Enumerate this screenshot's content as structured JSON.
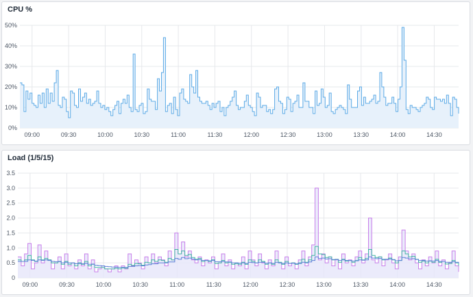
{
  "panels": {
    "cpu_title": "CPU %",
    "load_title": "Load (1/5/15)"
  },
  "colors": {
    "cpu_line": "#5aa9e6",
    "cpu_fill": "#e7f1fb",
    "load_1": "#c77dea",
    "load_5": "#3fb3a3",
    "load_15": "#5b7fd6",
    "load_fill": "#e6e6fa",
    "grid": "#e6e8eb"
  },
  "chart_data": [
    {
      "type": "area",
      "title": "CPU %",
      "ylim": [
        0,
        50
      ],
      "yticks": [
        "0%",
        "10%",
        "20%",
        "30%",
        "40%",
        "50%"
      ],
      "xticks": [
        "09:00",
        "09:30",
        "10:00",
        "10:30",
        "11:00",
        "11:30",
        "12:00",
        "12:30",
        "13:00",
        "13:30",
        "14:00",
        "14:30"
      ],
      "x_start": "08:50",
      "x_end": "14:50",
      "grid": true,
      "series": [
        {
          "values": [
            22,
            21,
            8,
            18,
            14,
            17,
            12,
            11,
            10,
            16,
            12,
            17,
            10,
            19,
            12,
            17,
            13,
            22,
            28,
            11,
            10,
            15,
            14,
            8,
            5,
            18,
            17,
            11,
            10,
            19,
            13,
            15,
            17,
            12,
            14,
            11,
            12,
            13,
            18,
            12,
            10,
            11,
            9,
            10,
            8,
            6,
            9,
            11,
            13,
            7,
            12,
            14,
            12,
            16,
            10,
            8,
            36,
            9,
            8,
            11,
            12,
            7,
            8,
            19,
            14,
            13,
            13,
            9,
            24,
            18,
            27,
            44,
            8,
            11,
            12,
            7,
            15,
            9,
            6,
            17,
            19,
            14,
            13,
            12,
            26,
            20,
            17,
            28,
            15,
            13,
            12,
            12,
            13,
            11,
            9,
            12,
            10,
            12,
            13,
            8,
            10,
            6,
            10,
            11,
            13,
            15,
            18,
            11,
            9,
            10,
            10,
            13,
            16,
            11,
            10,
            8,
            6,
            17,
            15,
            10,
            11,
            11,
            8,
            9,
            7,
            9,
            19,
            20,
            13,
            12,
            7,
            9,
            15,
            14,
            8,
            12,
            13,
            16,
            10,
            10,
            22,
            13,
            13,
            10,
            10,
            7,
            18,
            11,
            12,
            19,
            15,
            10,
            11,
            17,
            8,
            7,
            9,
            10,
            11,
            10,
            9,
            7,
            21,
            14,
            10,
            10,
            10,
            18,
            20,
            11,
            15,
            12,
            12,
            13,
            14,
            16,
            12,
            13,
            27,
            20,
            15,
            11,
            12,
            12,
            15,
            12,
            8,
            14,
            20,
            49,
            33,
            9,
            7,
            11,
            10,
            10,
            9,
            8,
            10,
            11,
            12,
            15,
            14,
            10,
            9,
            15,
            14,
            14,
            13,
            14,
            12,
            16,
            12,
            6,
            15,
            14,
            10,
            7
          ]
        }
      ]
    },
    {
      "type": "line",
      "title": "Load (1/5/15)",
      "ylim": [
        0,
        3.5
      ],
      "yticks": [
        "0",
        "0.5",
        "1.0",
        "1.5",
        "2.0",
        "2.5",
        "3.0",
        "3.5"
      ],
      "xticks": [
        "09:00",
        "09:30",
        "10:00",
        "10:30",
        "11:00",
        "11:30",
        "12:00",
        "12:30",
        "13:00",
        "13:30",
        "14:00",
        "14:30"
      ],
      "x_start": "08:50",
      "x_end": "14:50",
      "grid": true,
      "series": [
        {
          "name": "1",
          "values": [
            0.7,
            0.4,
            0.8,
            1.15,
            0.3,
            0.5,
            1.1,
            0.5,
            0.9,
            0.6,
            0.3,
            0.5,
            0.7,
            0.3,
            0.8,
            0.4,
            0.5,
            0.3,
            0.6,
            0.4,
            0.8,
            0.3,
            0.6,
            0.2,
            0.3,
            0.4,
            0.3,
            0.2,
            0.3,
            0.4,
            0.2,
            0.4,
            0.3,
            0.8,
            0.4,
            0.6,
            0.5,
            0.3,
            0.7,
            0.5,
            0.8,
            0.5,
            0.7,
            0.6,
            0.4,
            0.9,
            0.6,
            1.5,
            0.8,
            1.2,
            0.7,
            0.9,
            0.6,
            0.5,
            0.7,
            0.4,
            0.6,
            0.5,
            0.7,
            0.3,
            0.5,
            0.8,
            0.4,
            0.6,
            0.3,
            0.5,
            0.4,
            0.7,
            0.3,
            0.9,
            0.6,
            0.4,
            0.8,
            0.5,
            0.3,
            0.6,
            0.4,
            0.9,
            0.5,
            0.3,
            0.7,
            0.4,
            0.5,
            0.3,
            0.6,
            0.9,
            0.4,
            0.7,
            1.1,
            3.0,
            0.6,
            0.8,
            0.5,
            0.7,
            0.4,
            0.6,
            0.3,
            0.8,
            0.5,
            0.6,
            0.4,
            0.7,
            0.9,
            0.5,
            0.8,
            2.0,
            0.6,
            0.5,
            0.7,
            0.4,
            0.6,
            0.8,
            0.5,
            0.3,
            0.7,
            1.6,
            0.9,
            0.6,
            0.8,
            0.5,
            0.3,
            0.6,
            0.4,
            0.7,
            0.5,
            0.9,
            0.4,
            0.6,
            0.3,
            0.5,
            0.9,
            0.4,
            0.2
          ]
        },
        {
          "name": "5",
          "values": [
            0.6,
            0.55,
            0.6,
            0.75,
            0.6,
            0.55,
            0.7,
            0.6,
            0.65,
            0.6,
            0.5,
            0.5,
            0.55,
            0.45,
            0.55,
            0.45,
            0.5,
            0.4,
            0.5,
            0.45,
            0.55,
            0.4,
            0.45,
            0.35,
            0.35,
            0.35,
            0.3,
            0.3,
            0.3,
            0.32,
            0.3,
            0.33,
            0.32,
            0.45,
            0.42,
            0.48,
            0.47,
            0.42,
            0.52,
            0.5,
            0.6,
            0.55,
            0.6,
            0.58,
            0.52,
            0.65,
            0.6,
            0.95,
            0.8,
            0.9,
            0.75,
            0.78,
            0.68,
            0.62,
            0.65,
            0.55,
            0.58,
            0.55,
            0.6,
            0.48,
            0.5,
            0.58,
            0.5,
            0.52,
            0.45,
            0.48,
            0.45,
            0.52,
            0.45,
            0.6,
            0.55,
            0.5,
            0.6,
            0.55,
            0.45,
            0.5,
            0.45,
            0.6,
            0.52,
            0.45,
            0.55,
            0.48,
            0.5,
            0.45,
            0.5,
            0.62,
            0.52,
            0.6,
            0.75,
            1.05,
            0.8,
            0.78,
            0.68,
            0.7,
            0.6,
            0.62,
            0.52,
            0.62,
            0.56,
            0.58,
            0.52,
            0.58,
            0.68,
            0.6,
            0.65,
            0.95,
            0.75,
            0.68,
            0.7,
            0.6,
            0.62,
            0.66,
            0.6,
            0.5,
            0.58,
            0.9,
            0.8,
            0.7,
            0.72,
            0.62,
            0.52,
            0.56,
            0.5,
            0.56,
            0.52,
            0.62,
            0.52,
            0.55,
            0.46,
            0.48,
            0.58,
            0.5,
            0.4
          ]
        },
        {
          "name": "15",
          "values": [
            0.55,
            0.55,
            0.55,
            0.6,
            0.58,
            0.56,
            0.6,
            0.58,
            0.6,
            0.58,
            0.55,
            0.54,
            0.54,
            0.5,
            0.52,
            0.5,
            0.5,
            0.47,
            0.48,
            0.47,
            0.49,
            0.45,
            0.46,
            0.42,
            0.41,
            0.4,
            0.38,
            0.37,
            0.36,
            0.36,
            0.35,
            0.35,
            0.35,
            0.38,
            0.38,
            0.4,
            0.41,
            0.4,
            0.43,
            0.44,
            0.47,
            0.47,
            0.5,
            0.5,
            0.5,
            0.53,
            0.53,
            0.65,
            0.62,
            0.68,
            0.64,
            0.66,
            0.63,
            0.6,
            0.61,
            0.58,
            0.58,
            0.57,
            0.58,
            0.54,
            0.54,
            0.55,
            0.53,
            0.53,
            0.5,
            0.5,
            0.49,
            0.5,
            0.48,
            0.52,
            0.51,
            0.5,
            0.52,
            0.52,
            0.49,
            0.5,
            0.48,
            0.52,
            0.5,
            0.48,
            0.5,
            0.48,
            0.49,
            0.47,
            0.48,
            0.52,
            0.5,
            0.53,
            0.58,
            0.7,
            0.65,
            0.66,
            0.63,
            0.64,
            0.61,
            0.61,
            0.58,
            0.6,
            0.58,
            0.58,
            0.56,
            0.57,
            0.6,
            0.59,
            0.6,
            0.7,
            0.66,
            0.64,
            0.65,
            0.62,
            0.62,
            0.63,
            0.61,
            0.57,
            0.58,
            0.68,
            0.66,
            0.64,
            0.64,
            0.61,
            0.58,
            0.58,
            0.56,
            0.57,
            0.56,
            0.58,
            0.55,
            0.55,
            0.52,
            0.52,
            0.54,
            0.52,
            0.48
          ]
        }
      ]
    }
  ]
}
